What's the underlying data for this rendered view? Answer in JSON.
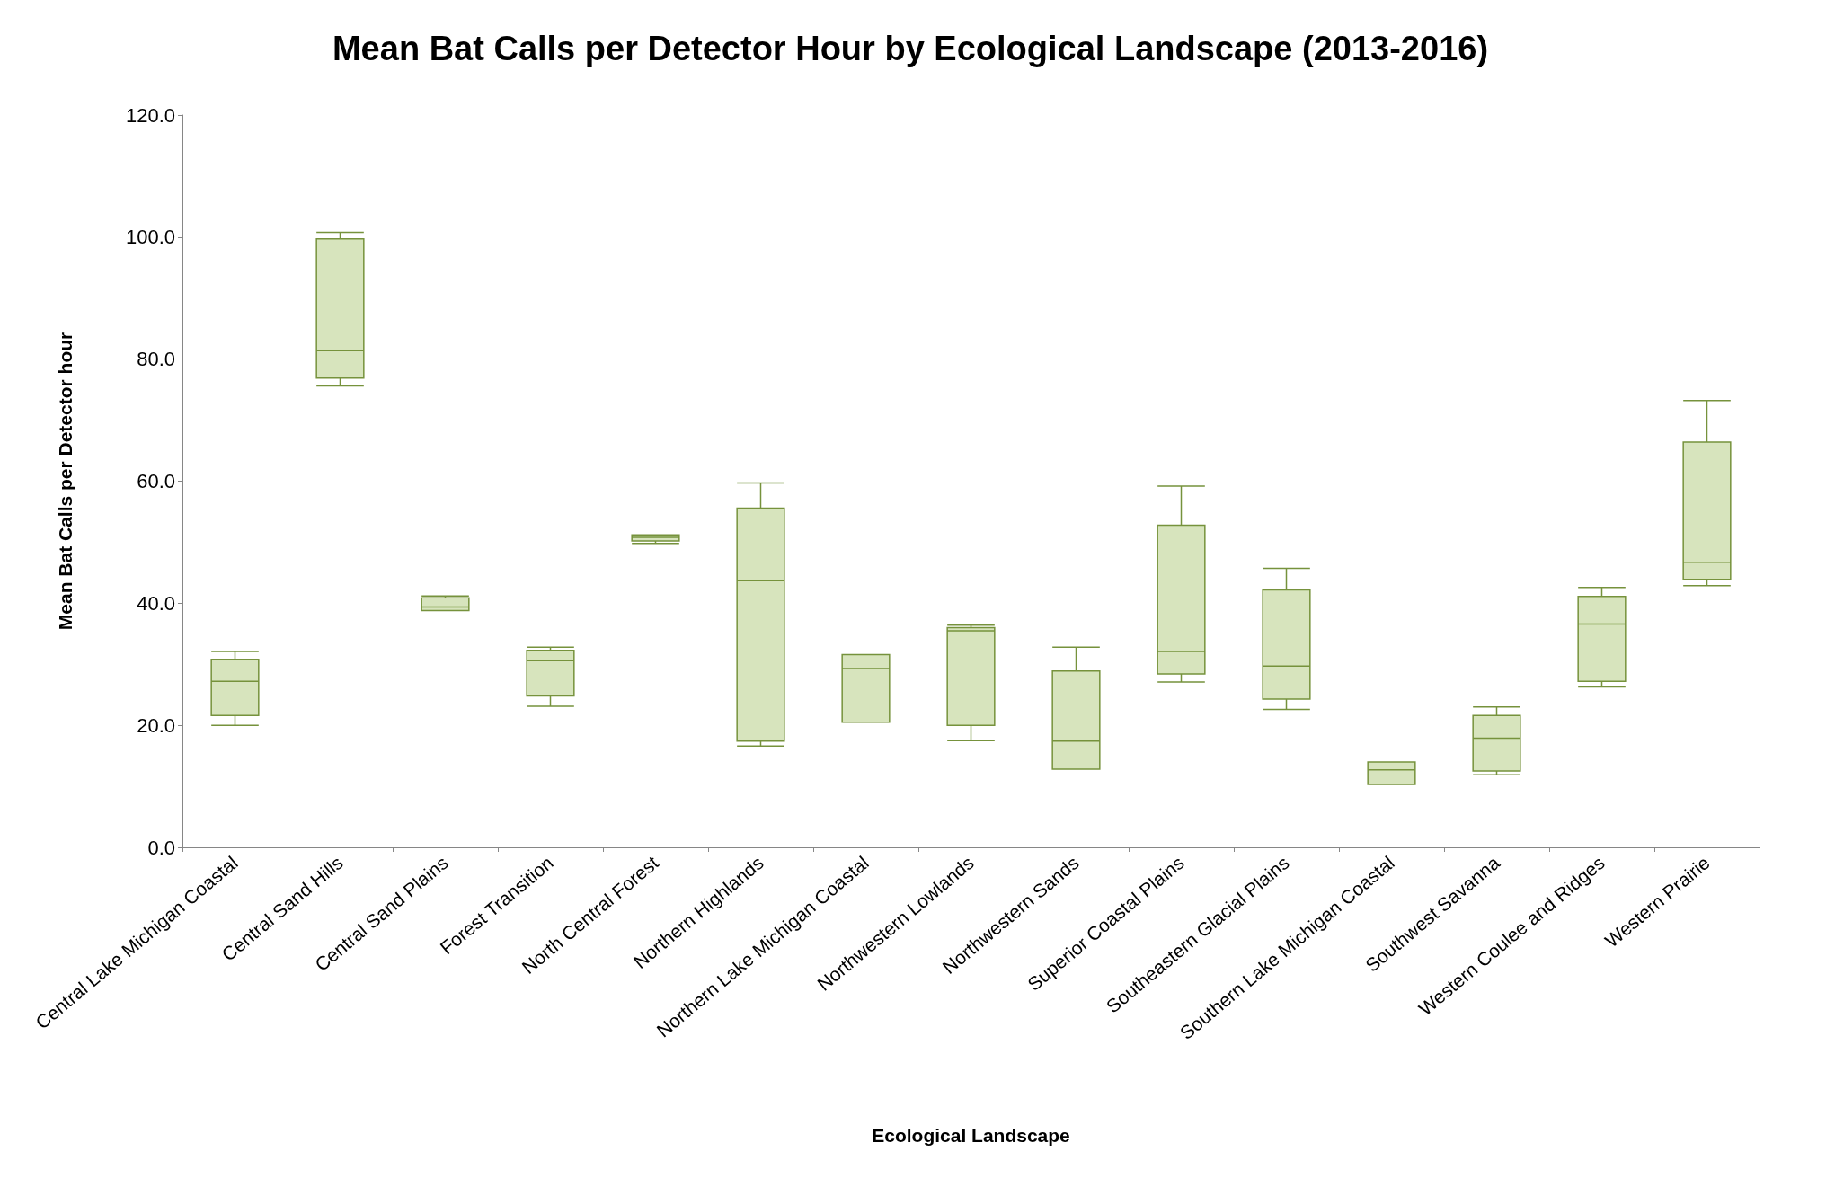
{
  "chart_data": {
    "type": "box",
    "title": "Mean Bat Calls per Detector Hour by Ecological Landscape (2013-2016)",
    "xlabel": "Ecological Landscape",
    "ylabel": "Mean Bat Calls per Detector hour",
    "categories": [
      "Central Lake Michigan Coastal",
      "Central Sand Hills",
      "Central Sand Plains",
      "Forest Transition",
      "North Central Forest",
      "Northern Highlands",
      "Northern Lake Michigan Coastal",
      "Northwestern Lowlands",
      "Northwestern Sands",
      "Superior Coastal Plains",
      "Southeastern Glacial Plains",
      "Southern Lake Michigan Coastal",
      "Southwest Savanna",
      "Western Coulee and Ridges",
      "Western Prairie"
    ],
    "series": [
      {
        "color": "#d7e4bd",
        "boxes": [
          {
            "low": 20.0,
            "q1": 21.6,
            "median": 27.2,
            "q3": 30.8,
            "high": 32.1
          },
          {
            "low": 75.6,
            "q1": 76.9,
            "median": 81.4,
            "q3": 99.7,
            "high": 100.8
          },
          {
            "low": 38.8,
            "q1": 38.8,
            "median": 39.4,
            "q3": 40.9,
            "high": 41.2
          },
          {
            "low": 23.1,
            "q1": 24.8,
            "median": 30.6,
            "q3": 32.3,
            "high": 32.8
          },
          {
            "low": 49.8,
            "q1": 50.2,
            "median": 50.8,
            "q3": 51.2,
            "high": 51.2
          },
          {
            "low": 16.6,
            "q1": 17.4,
            "median": 43.7,
            "q3": 55.6,
            "high": 59.7
          },
          {
            "low": 20.5,
            "q1": 20.5,
            "median": 29.3,
            "q3": 31.6,
            "high": 31.6
          },
          {
            "low": 17.5,
            "q1": 20.0,
            "median": 35.5,
            "q3": 36.0,
            "high": 36.4
          },
          {
            "low": 12.8,
            "q1": 12.8,
            "median": 17.4,
            "q3": 28.9,
            "high": 32.8
          },
          {
            "low": 27.1,
            "q1": 28.4,
            "median": 32.1,
            "q3": 52.8,
            "high": 59.2
          },
          {
            "low": 22.6,
            "q1": 24.3,
            "median": 29.7,
            "q3": 42.2,
            "high": 45.7
          },
          {
            "low": 10.3,
            "q1": 10.3,
            "median": 12.7,
            "q3": 14.0,
            "high": 14.0
          },
          {
            "low": 11.9,
            "q1": 12.5,
            "median": 17.9,
            "q3": 21.6,
            "high": 23.0
          },
          {
            "low": 26.3,
            "q1": 27.2,
            "median": 36.6,
            "q3": 41.1,
            "high": 42.6
          },
          {
            "low": 42.9,
            "q1": 43.9,
            "median": 46.7,
            "q3": 66.4,
            "high": 73.2
          }
        ]
      }
    ],
    "ylim": [
      0,
      120
    ],
    "yticks": [
      {
        "value": 0,
        "label": "0.0"
      },
      {
        "value": 20,
        "label": "20.0"
      },
      {
        "value": 40,
        "label": "40.0"
      },
      {
        "value": 60,
        "label": "60.0"
      },
      {
        "value": 80,
        "label": "80.0"
      },
      {
        "value": 100,
        "label": "100.0"
      },
      {
        "value": 120,
        "label": "120.0"
      }
    ],
    "grid": false
  }
}
